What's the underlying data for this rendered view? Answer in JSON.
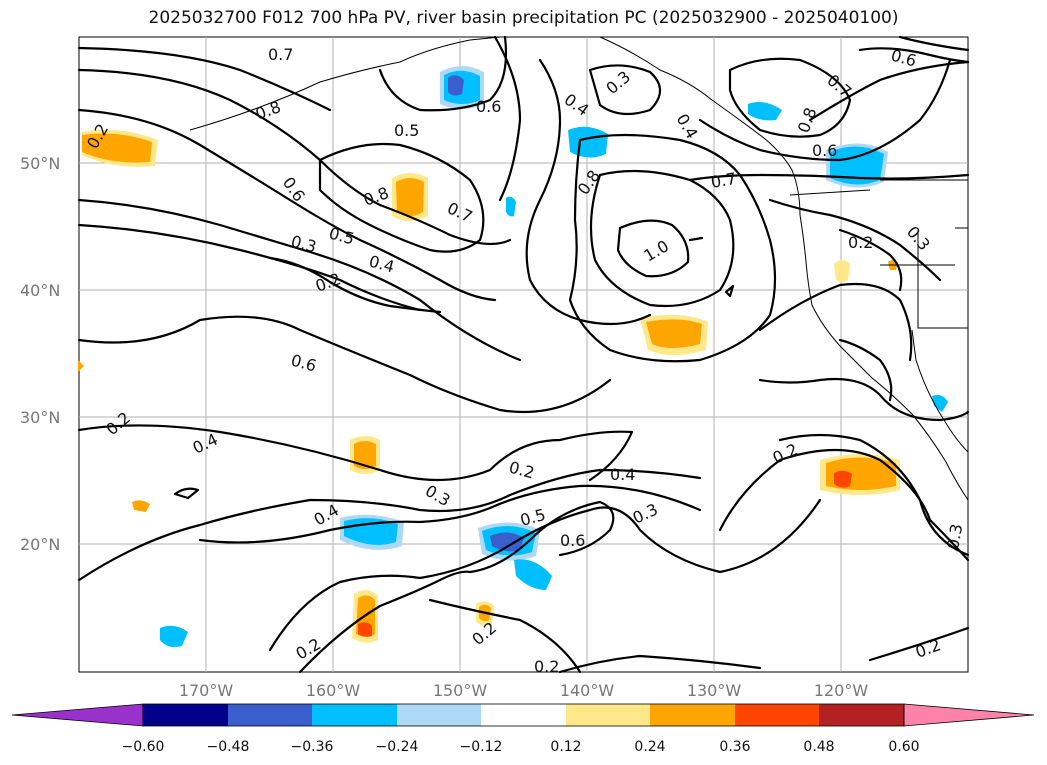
{
  "title": "2025032700 F012 700 hPa PV, river basin precipitation PC (2025032900 - 2025040100)",
  "lat_labels": [
    "50°N",
    "40°N",
    "30°N",
    "20°N"
  ],
  "lon_labels": [
    "170°W",
    "160°W",
    "150°W",
    "140°W",
    "130°W",
    "120°W"
  ],
  "colorbar": {
    "tick_labels": [
      "−0.60",
      "−0.48",
      "−0.36",
      "−0.24",
      "−0.12",
      "0.12",
      "0.24",
      "0.36",
      "0.48",
      "0.60"
    ],
    "colors": [
      "#9932cc",
      "#00008b",
      "#3a5fcd",
      "#00bfff",
      "#add8f6",
      "#ffffff",
      "#ffe88a",
      "#ffa500",
      "#ff4500",
      "#b22222",
      "#ff82ab"
    ]
  },
  "contour_labels": [
    "0.7",
    "0.8",
    "0.5",
    "0.6",
    "0.4",
    "0.3",
    "0.2",
    "1.0",
    "0.2",
    "0.3",
    "0.4",
    "0.5",
    "0.6",
    "0.7",
    "0.8",
    "0.2",
    "0.3",
    "0.4",
    "0.6",
    "0.2",
    "0.2",
    "0.4",
    "0.3",
    "0.5",
    "0.4",
    "0.2",
    "0.2",
    "0.2",
    "0.3",
    "0.2",
    "0.6",
    "0.2",
    "0.8",
    "0.6",
    "0.7",
    "0.8",
    "0.4",
    "0.3",
    "0.6",
    "0.7"
  ]
}
